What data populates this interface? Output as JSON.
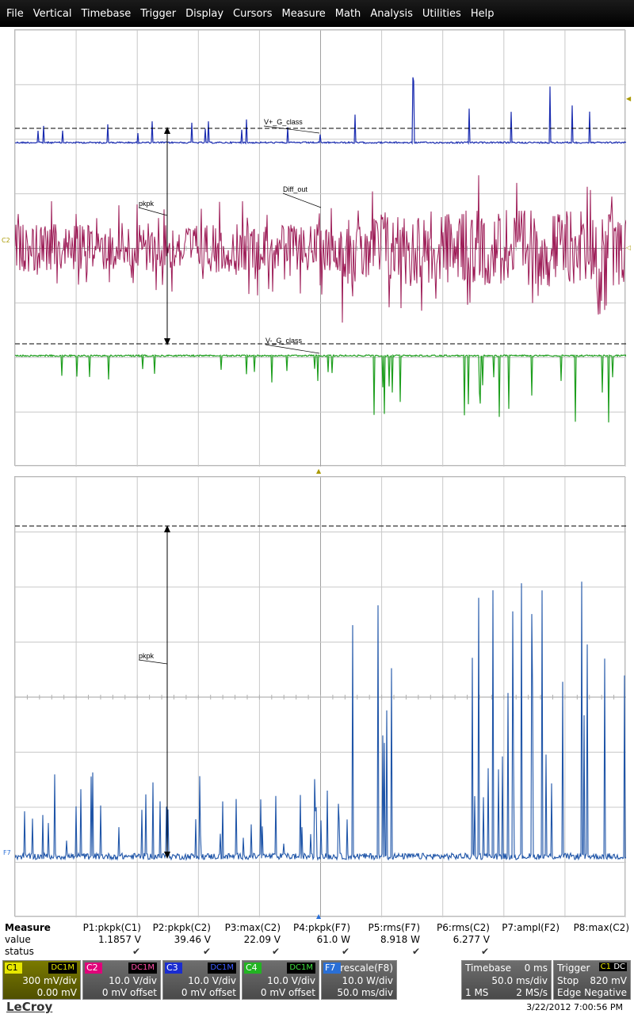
{
  "menu": [
    "File",
    "Vertical",
    "Timebase",
    "Trigger",
    "Display",
    "Cursors",
    "Measure",
    "Math",
    "Analysis",
    "Utilities",
    "Help"
  ],
  "grid1": {
    "labels": {
      "vplus": "V+_G_class",
      "pkpk": "pkpk",
      "diffout": "Diff_out",
      "vminus": "V-_G_class",
      "c_marker": "C2"
    }
  },
  "grid2": {
    "labels": {
      "pkpk": "pkpk",
      "f_marker": "F7"
    }
  },
  "measure": {
    "title": "Measure",
    "row_value": "value",
    "row_status": "status",
    "params": [
      {
        "name": "P1:pkpk(C1)",
        "value": "1.1857 V",
        "ok": true
      },
      {
        "name": "P2:pkpk(C2)",
        "value": "39.46 V",
        "ok": true
      },
      {
        "name": "P3:max(C2)",
        "value": "22.09 V",
        "ok": true
      },
      {
        "name": "P4:pkpk(F7)",
        "value": "61.0 W",
        "ok": true
      },
      {
        "name": "P5:rms(F7)",
        "value": "8.918 W",
        "ok": true
      },
      {
        "name": "P6:rms(C2)",
        "value": "6.277 V",
        "ok": true
      },
      {
        "name": "P7:ampl(F2)",
        "value": "",
        "ok": false
      },
      {
        "name": "P8:max(C2)",
        "value": "",
        "ok": false
      }
    ]
  },
  "channels": [
    {
      "id": "C1",
      "coupling": "DC1M",
      "scale": "300 mV/div",
      "offset": "0.00 mV",
      "color": "#e6e600",
      "bg": "#6b6b00"
    },
    {
      "id": "C2",
      "coupling": "DC1M",
      "scale": "10.0 V/div",
      "offset": "0 mV offset",
      "color": "#e0007a",
      "bg": "#5a5a5a"
    },
    {
      "id": "C3",
      "coupling": "DC1M",
      "scale": "10.0 V/div",
      "offset": "0 mV offset",
      "color": "#1a2cd0",
      "bg": "#5a5a5a"
    },
    {
      "id": "C4",
      "coupling": "DC1M",
      "scale": "10.0 V/div",
      "offset": "0 mV offset",
      "color": "#22b422",
      "bg": "#5a5a5a"
    },
    {
      "id": "F7",
      "coupling": "rescale(F8)",
      "scale": "10.0 W/div",
      "offset": "50.0 ms/div",
      "color": "#2a6fd6",
      "bg": "#5a5a5a"
    }
  ],
  "timebase": {
    "label": "Timebase",
    "delay": "0 ms",
    "per_div": "50.0 ms/div",
    "samples": "1 MS",
    "rate": "2 MS/s"
  },
  "trigger": {
    "label": "Trigger",
    "source": "C1",
    "coupling": "DC",
    "mode": "Stop",
    "level": "820 mV",
    "type": "Edge",
    "slope": "Negative"
  },
  "footer": {
    "brand": "LeCroy",
    "timestamp": "3/22/2012 7:00:56 PM"
  },
  "colors": {
    "c2_trace": "#9c1a55",
    "c3_trace": "#1a2cb0",
    "c4_trace": "#1e9e1e",
    "f7_trace": "#1f55a8",
    "cursor": "#000000"
  }
}
